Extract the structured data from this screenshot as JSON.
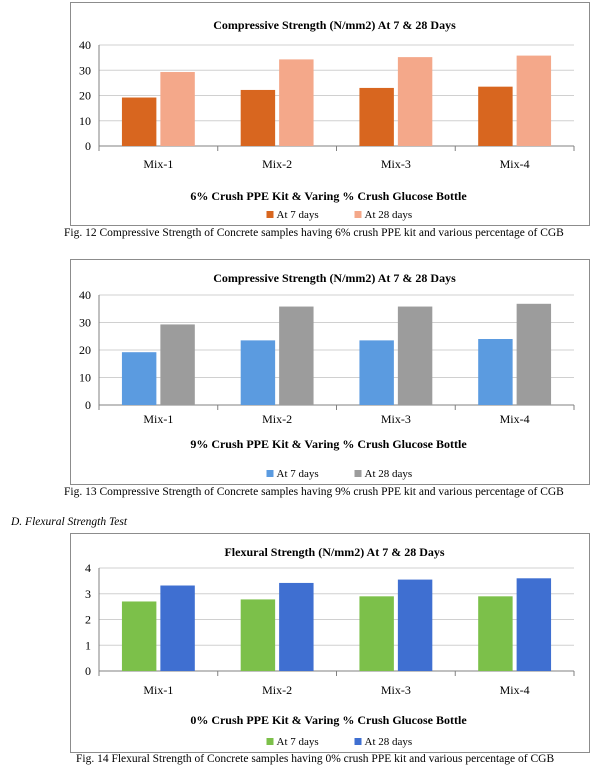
{
  "charts": [
    {
      "id": "fig12",
      "caption": "Fig. 12   Compressive Strength of Concrete samples having 6% crush PPE kit and various percentage of CGB",
      "chart_data": {
        "type": "bar",
        "title": "Compressive Strength (N/mm2) At 7 & 28 Days",
        "xlabel": "6% Crush PPE Kit & Varing % Crush Glucose Bottle",
        "ylabel": "",
        "categories": [
          "Mix-1",
          "Mix-2",
          "Mix-3",
          "Mix-4"
        ],
        "ylim": [
          0,
          40
        ],
        "yticks": [
          "0",
          "10",
          "20",
          "30",
          "40"
        ],
        "grid": true,
        "legend_position": "bottom",
        "series": [
          {
            "name": "At 7 days",
            "values": [
              19.2,
              22.2,
              23.0,
              23.5
            ],
            "color": "#d8661f"
          },
          {
            "name": "At 28 days",
            "values": [
              29.3,
              34.3,
              35.2,
              35.8
            ],
            "color": "#f4a88a"
          }
        ]
      }
    },
    {
      "id": "fig13",
      "caption": "Fig. 13   Compressive Strength of Concrete samples having 9% crush PPE kit and various percentage of CGB",
      "chart_data": {
        "type": "bar",
        "title": "Compressive Strength (N/mm2) At 7 & 28 Days",
        "xlabel": "9% Crush PPE Kit & Varing % Crush Glucose Bottle",
        "ylabel": "",
        "categories": [
          "Mix-1",
          "Mix-2",
          "Mix-3",
          "Mix-4"
        ],
        "ylim": [
          0,
          40
        ],
        "yticks": [
          "0",
          "10",
          "20",
          "30",
          "40"
        ],
        "grid": true,
        "legend_position": "bottom",
        "series": [
          {
            "name": "At 7 days",
            "values": [
              19.2,
              23.5,
              23.5,
              24.0
            ],
            "color": "#5b9be0"
          },
          {
            "name": "At 28 days",
            "values": [
              29.3,
              35.8,
              35.8,
              36.8
            ],
            "color": "#9c9c9c"
          }
        ]
      }
    },
    {
      "id": "fig14",
      "caption": "Fig. 14   Flexural Strength of Concrete samples having 0% crush PPE kit and various percentage of CGB",
      "chart_data": {
        "type": "bar",
        "title": "Flexural Strength (N/mm2) At 7 & 28 Days",
        "xlabel": "0% Crush PPE Kit & Varing % Crush Glucose Bottle",
        "ylabel": "",
        "categories": [
          "Mix-1",
          "Mix-2",
          "Mix-3",
          "Mix-4"
        ],
        "ylim": [
          0,
          4
        ],
        "yticks": [
          "0",
          "1",
          "2",
          "3",
          "4"
        ],
        "grid": true,
        "legend_position": "bottom",
        "series": [
          {
            "name": "At 7 days",
            "values": [
              2.7,
              2.78,
              2.9,
              2.9
            ],
            "color": "#7cc04a"
          },
          {
            "name": "At 28 days",
            "values": [
              3.32,
              3.42,
              3.55,
              3.6
            ],
            "color": "#3f6fd1"
          }
        ]
      }
    }
  ],
  "section_heading": "D.   Flexural Strength Test"
}
